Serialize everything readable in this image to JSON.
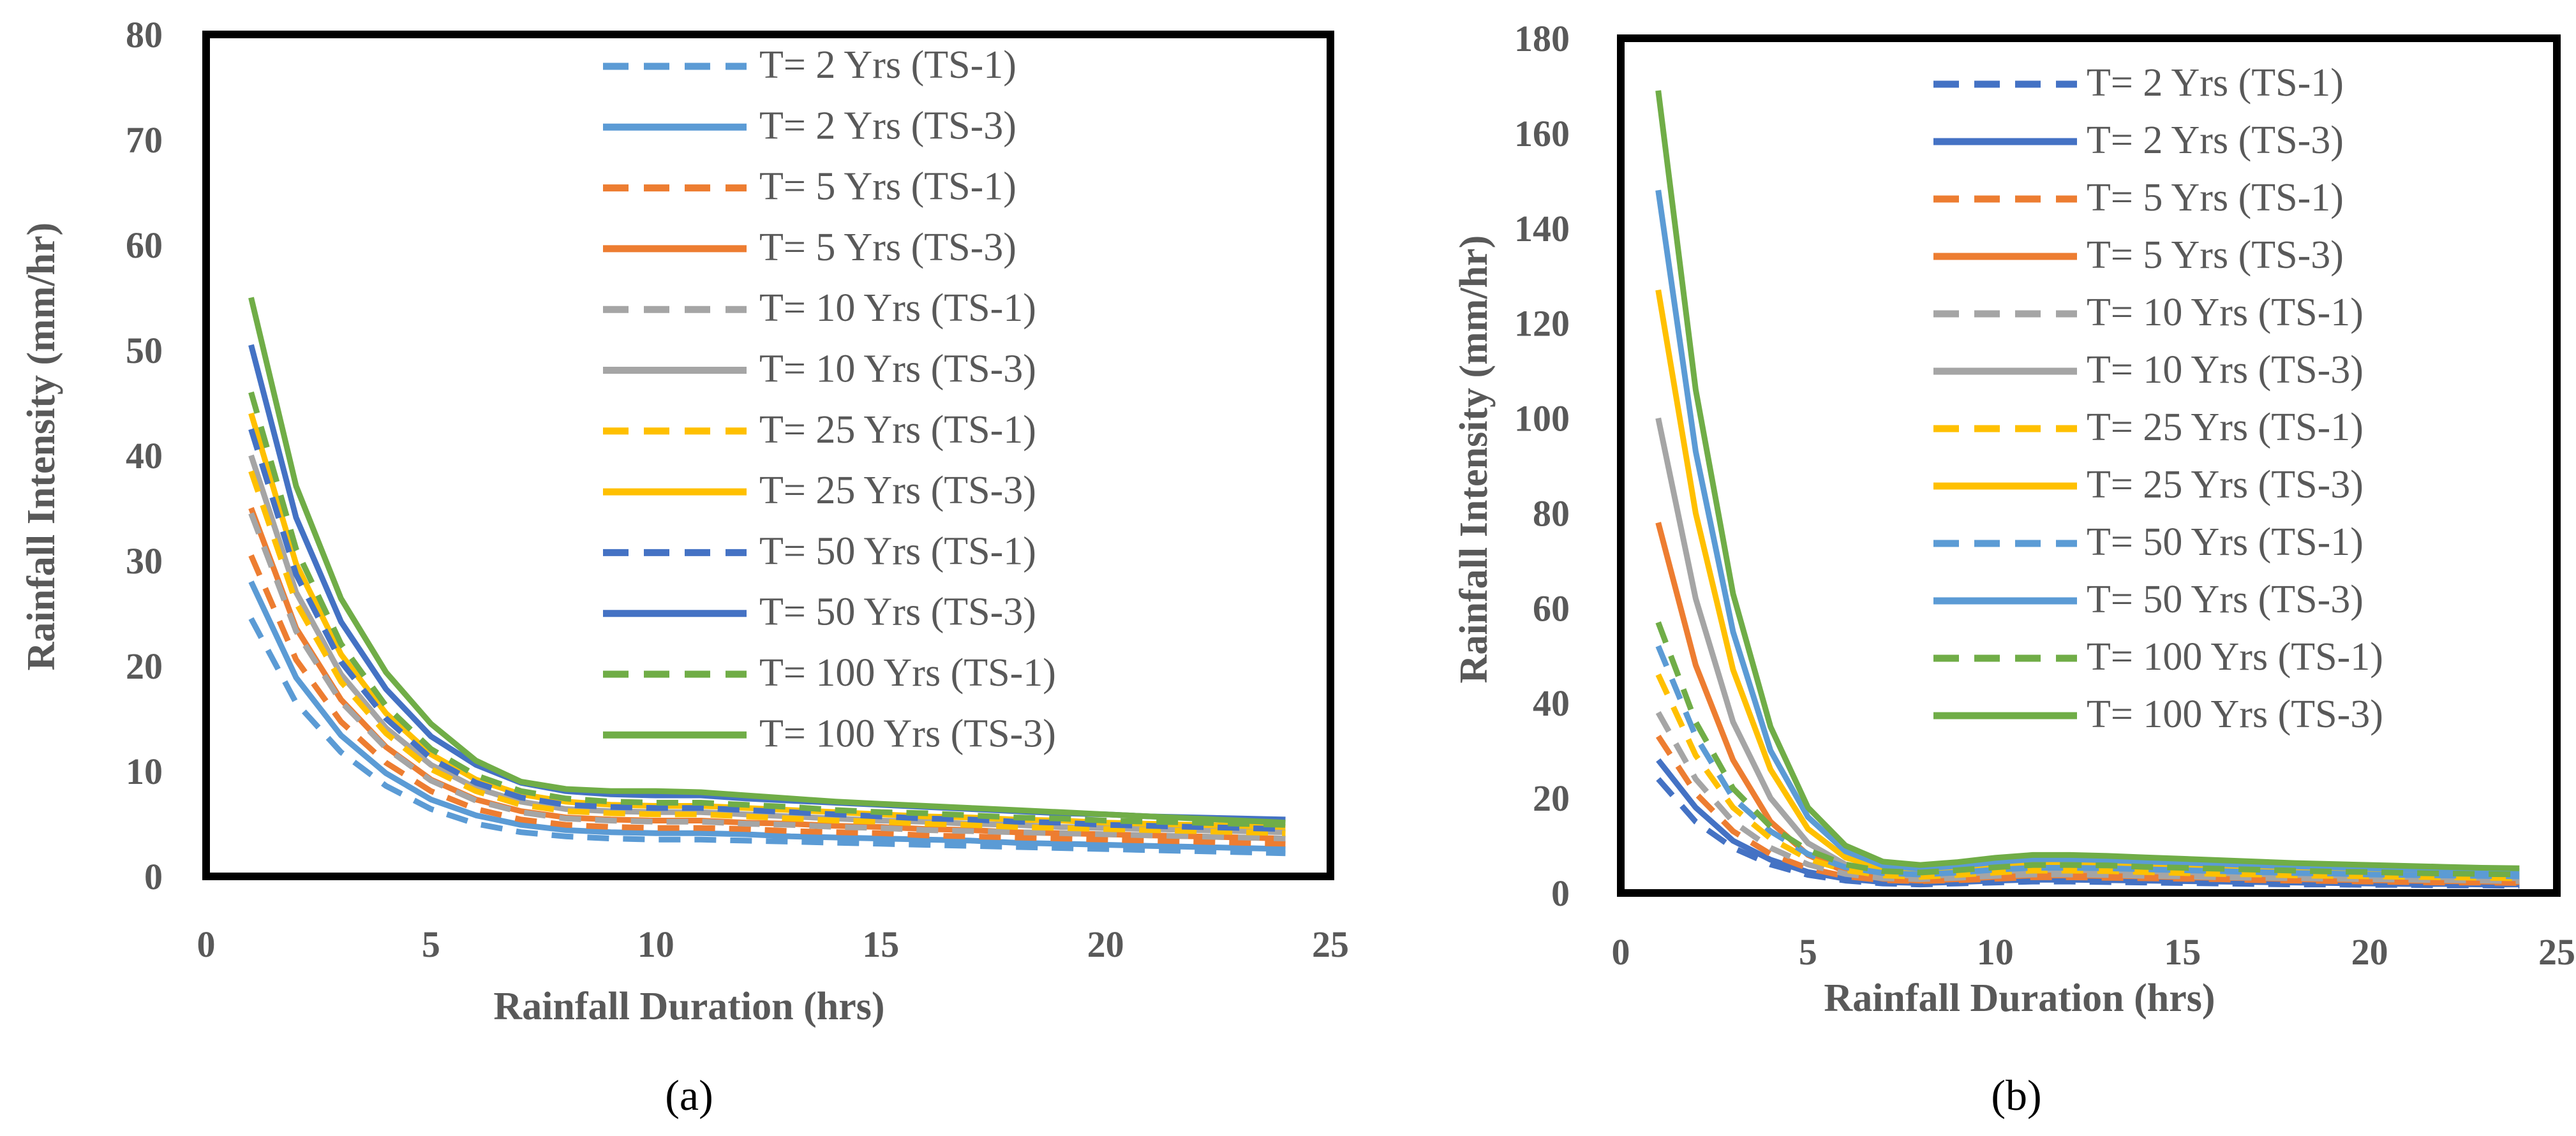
{
  "chart_data": [
    {
      "type": "line",
      "panel_label": "(a)",
      "xlabel": "Rainfall Duration (hrs)",
      "ylabel": "Rainfall Intensity (mm/hr)",
      "xlim": [
        0,
        25
      ],
      "ylim": [
        0,
        80
      ],
      "xticks": [
        "0",
        "5",
        "10",
        "15",
        "20",
        "25"
      ],
      "yticks": [
        "0",
        "10",
        "20",
        "30",
        "40",
        "50",
        "60",
        "70",
        "80"
      ],
      "grid": false,
      "legend_position": "top-right",
      "x": [
        1,
        2,
        3,
        4,
        5,
        6,
        7,
        8,
        9,
        10,
        11,
        12,
        13,
        14,
        15,
        16,
        17,
        18,
        19,
        20,
        21,
        22,
        23,
        24
      ],
      "series": [
        {
          "name": "T= 2 Yrs (TS-1)",
          "dash": true,
          "color": "#5B9BD5",
          "values": [
            24.5,
            16.5,
            11.8,
            8.6,
            6.4,
            5.0,
            4.2,
            3.8,
            3.6,
            3.5,
            3.5,
            3.4,
            3.3,
            3.2,
            3.1,
            3.0,
            2.9,
            2.8,
            2.7,
            2.6,
            2.5,
            2.4,
            2.3,
            2.2
          ]
        },
        {
          "name": "T= 2 Yrs (TS-3)",
          "dash": false,
          "color": "#5B9BD5",
          "values": [
            28.0,
            18.9,
            13.4,
            9.8,
            7.3,
            5.8,
            4.9,
            4.4,
            4.2,
            4.1,
            4.1,
            4.0,
            3.8,
            3.7,
            3.6,
            3.5,
            3.4,
            3.2,
            3.1,
            3.0,
            2.9,
            2.8,
            2.7,
            2.6
          ]
        },
        {
          "name": "T= 5 Yrs (TS-1)",
          "dash": true,
          "color": "#ED7D31",
          "values": [
            30.5,
            20.6,
            14.7,
            10.8,
            8.1,
            6.4,
            5.4,
            4.9,
            4.7,
            4.6,
            4.6,
            4.5,
            4.3,
            4.2,
            4.1,
            3.9,
            3.8,
            3.7,
            3.6,
            3.5,
            3.4,
            3.3,
            3.2,
            3.1
          ]
        },
        {
          "name": "T= 5 Yrs (TS-3)",
          "dash": false,
          "color": "#ED7D31",
          "values": [
            35.0,
            23.6,
            16.8,
            12.3,
            9.2,
            7.3,
            6.2,
            5.6,
            5.4,
            5.3,
            5.3,
            5.1,
            5.0,
            4.8,
            4.7,
            4.5,
            4.4,
            4.2,
            4.1,
            4.0,
            3.9,
            3.8,
            3.7,
            3.6
          ]
        },
        {
          "name": "T= 10 Yrs (TS-1)",
          "dash": true,
          "color": "#A5A5A5",
          "values": [
            34.5,
            23.3,
            16.6,
            12.2,
            9.1,
            7.2,
            6.1,
            5.5,
            5.3,
            5.2,
            5.2,
            5.0,
            4.9,
            4.7,
            4.6,
            4.4,
            4.3,
            4.2,
            4.1,
            4.0,
            3.9,
            3.8,
            3.7,
            3.6
          ]
        },
        {
          "name": "T= 10 Yrs (TS-3)",
          "dash": false,
          "color": "#A5A5A5",
          "values": [
            40.0,
            27.0,
            19.2,
            14.1,
            10.6,
            8.4,
            7.1,
            6.4,
            6.2,
            6.1,
            6.1,
            5.9,
            5.7,
            5.5,
            5.3,
            5.2,
            5.0,
            4.9,
            4.7,
            4.6,
            4.5,
            4.4,
            4.3,
            4.2
          ]
        },
        {
          "name": "T= 25 Yrs (TS-1)",
          "dash": true,
          "color": "#FFC000",
          "values": [
            38.5,
            26.0,
            18.5,
            13.6,
            10.2,
            8.1,
            6.8,
            6.2,
            6.0,
            5.9,
            5.9,
            5.7,
            5.5,
            5.3,
            5.2,
            5.0,
            4.9,
            4.7,
            4.6,
            4.5,
            4.4,
            4.3,
            4.2,
            4.1
          ]
        },
        {
          "name": "T= 25 Yrs (TS-3)",
          "dash": false,
          "color": "#FFC000",
          "values": [
            44.0,
            29.7,
            21.1,
            15.5,
            11.6,
            9.2,
            7.8,
            7.1,
            6.8,
            6.7,
            6.7,
            6.5,
            6.3,
            6.1,
            5.9,
            5.7,
            5.6,
            5.4,
            5.3,
            5.1,
            5.0,
            4.9,
            4.8,
            4.7
          ]
        },
        {
          "name": "T= 50 Yrs (TS-1)",
          "dash": true,
          "color": "#4472C4",
          "values": [
            42.5,
            28.7,
            20.4,
            15.0,
            11.2,
            8.9,
            7.5,
            6.8,
            6.6,
            6.5,
            6.5,
            6.3,
            6.1,
            5.9,
            5.7,
            5.5,
            5.4,
            5.2,
            5.1,
            4.9,
            4.8,
            4.7,
            4.6,
            4.5
          ]
        },
        {
          "name": "T= 50 Yrs (TS-3)",
          "dash": false,
          "color": "#4472C4",
          "values": [
            50.5,
            34.1,
            24.2,
            17.8,
            13.3,
            10.6,
            8.9,
            8.1,
            7.8,
            7.7,
            7.7,
            7.4,
            7.2,
            7.0,
            6.8,
            6.6,
            6.4,
            6.2,
            6.0,
            5.9,
            5.7,
            5.6,
            5.5,
            5.4
          ]
        },
        {
          "name": "T= 100 Yrs (TS-1)",
          "dash": true,
          "color": "#70AD47",
          "values": [
            46.0,
            31.1,
            22.1,
            16.2,
            12.1,
            9.6,
            8.1,
            7.4,
            7.1,
            7.0,
            7.0,
            6.8,
            6.6,
            6.3,
            6.1,
            6.0,
            5.8,
            5.6,
            5.5,
            5.3,
            5.2,
            5.1,
            5.0,
            4.9
          ]
        },
        {
          "name": "T= 100 Yrs (TS-3)",
          "dash": false,
          "color": "#70AD47",
          "values": [
            55.0,
            37.1,
            26.4,
            19.4,
            14.5,
            11.0,
            9.0,
            8.3,
            8.1,
            8.1,
            8.0,
            7.7,
            7.4,
            7.1,
            6.9,
            6.7,
            6.5,
            6.3,
            6.1,
            5.9,
            5.7,
            5.5,
            5.3,
            5.1
          ]
        }
      ]
    },
    {
      "type": "line",
      "panel_label": "(b)",
      "xlabel": "Rainfall Duration (hrs)",
      "ylabel": "Rainfall Intensity (mm/hr)",
      "xlim": [
        0,
        25
      ],
      "ylim": [
        0,
        180
      ],
      "xticks": [
        "0",
        "5",
        "10",
        "15",
        "20",
        "25"
      ],
      "yticks": [
        "0",
        "20",
        "40",
        "60",
        "80",
        "100",
        "120",
        "140",
        "160",
        "180"
      ],
      "grid": false,
      "legend_position": "top-right",
      "x": [
        1,
        2,
        3,
        4,
        5,
        6,
        7,
        8,
        9,
        10,
        11,
        12,
        13,
        14,
        15,
        16,
        17,
        18,
        19,
        20,
        21,
        22,
        23,
        24
      ],
      "series": [
        {
          "name": "T= 2 Yrs (TS-1)",
          "dash": true,
          "color": "#4472C4",
          "values": [
            24,
            15,
            9.5,
            6.0,
            3.8,
            2.6,
            2.0,
            1.8,
            2.0,
            2.2,
            2.4,
            2.4,
            2.3,
            2.2,
            2.1,
            2.0,
            1.9,
            1.8,
            1.8,
            1.7,
            1.7,
            1.6,
            1.6,
            1.5
          ]
        },
        {
          "name": "T= 2 Yrs (TS-3)",
          "dash": false,
          "color": "#4472C4",
          "values": [
            28,
            18,
            11,
            7.0,
            4.4,
            3.0,
            2.3,
            2.1,
            2.3,
            2.6,
            2.8,
            2.8,
            2.7,
            2.6,
            2.5,
            2.4,
            2.3,
            2.2,
            2.1,
            2.0,
            1.9,
            1.9,
            1.8,
            1.8
          ]
        },
        {
          "name": "T= 5 Yrs (TS-1)",
          "dash": true,
          "color": "#ED7D31",
          "values": [
            33,
            21,
            13,
            8.2,
            5.2,
            3.5,
            2.7,
            2.5,
            2.7,
            3.0,
            3.3,
            3.3,
            3.2,
            3.1,
            3.0,
            2.9,
            2.7,
            2.6,
            2.5,
            2.4,
            2.3,
            2.2,
            2.2,
            2.1
          ]
        },
        {
          "name": "T= 5 Yrs (TS-3)",
          "dash": false,
          "color": "#ED7D31",
          "values": [
            78,
            48,
            28,
            15,
            8.0,
            4.5,
            3.0,
            2.6,
            2.9,
            3.4,
            3.7,
            3.7,
            3.6,
            3.5,
            3.3,
            3.2,
            3.1,
            2.9,
            2.8,
            2.7,
            2.6,
            2.5,
            2.4,
            2.3
          ]
        },
        {
          "name": "T= 10 Yrs (TS-1)",
          "dash": true,
          "color": "#A5A5A5",
          "values": [
            38,
            24,
            15,
            9.5,
            6.0,
            4.0,
            3.1,
            2.9,
            3.2,
            3.6,
            3.9,
            3.9,
            3.8,
            3.6,
            3.5,
            3.3,
            3.2,
            3.1,
            3.0,
            2.9,
            2.8,
            2.7,
            2.6,
            2.5
          ]
        },
        {
          "name": "T= 10 Yrs (TS-3)",
          "dash": false,
          "color": "#A5A5A5",
          "values": [
            100,
            62,
            36,
            20,
            10.5,
            6.0,
            4.0,
            3.5,
            3.9,
            4.5,
            4.9,
            4.9,
            4.8,
            4.6,
            4.4,
            4.2,
            4.0,
            3.8,
            3.7,
            3.5,
            3.4,
            3.3,
            3.2,
            3.1
          ]
        },
        {
          "name": "T= 25 Yrs (TS-1)",
          "dash": true,
          "color": "#FFC000",
          "values": [
            46,
            29,
            18,
            11.5,
            7.2,
            4.8,
            3.7,
            3.4,
            3.8,
            4.3,
            4.7,
            4.7,
            4.6,
            4.4,
            4.2,
            4.0,
            3.9,
            3.7,
            3.6,
            3.5,
            3.4,
            3.3,
            3.2,
            3.1
          ]
        },
        {
          "name": "T= 25 Yrs (TS-3)",
          "dash": false,
          "color": "#FFC000",
          "values": [
            127,
            80,
            47,
            26,
            13.5,
            7.5,
            5.0,
            4.4,
            4.9,
            5.6,
            6.1,
            6.1,
            5.9,
            5.7,
            5.5,
            5.2,
            5.0,
            4.8,
            4.6,
            4.5,
            4.3,
            4.2,
            4.1,
            4.0
          ]
        },
        {
          "name": "T= 50 Yrs (TS-1)",
          "dash": true,
          "color": "#5B9BD5",
          "values": [
            52,
            33,
            20,
            13,
            8.2,
            5.4,
            4.2,
            3.9,
            4.3,
            4.9,
            5.3,
            5.3,
            5.2,
            5.0,
            4.8,
            4.6,
            4.4,
            4.2,
            4.1,
            3.9,
            3.8,
            3.7,
            3.6,
            3.5
          ]
        },
        {
          "name": "T= 50 Yrs (TS-3)",
          "dash": false,
          "color": "#5B9BD5",
          "values": [
            148,
            93,
            55,
            30,
            16,
            8.8,
            5.8,
            5.1,
            5.7,
            6.5,
            7.1,
            7.1,
            6.9,
            6.6,
            6.4,
            6.1,
            5.8,
            5.6,
            5.4,
            5.2,
            5.0,
            4.9,
            4.7,
            4.6
          ]
        },
        {
          "name": "T= 100 Yrs (TS-1)",
          "dash": true,
          "color": "#70AD47",
          "values": [
            57,
            36,
            22,
            14,
            9.0,
            6.0,
            4.6,
            4.3,
            4.8,
            5.4,
            5.9,
            5.9,
            5.8,
            5.5,
            5.3,
            5.1,
            4.9,
            4.7,
            4.5,
            4.4,
            4.2,
            4.1,
            4.0,
            3.9
          ]
        },
        {
          "name": "T= 100 Yrs (TS-3)",
          "dash": false,
          "color": "#70AD47",
          "values": [
            169,
            106,
            63,
            35,
            18,
            10,
            6.6,
            5.9,
            6.5,
            7.4,
            8.0,
            8.0,
            7.8,
            7.5,
            7.2,
            6.9,
            6.6,
            6.3,
            6.1,
            5.9,
            5.7,
            5.5,
            5.3,
            5.2
          ]
        }
      ]
    }
  ]
}
